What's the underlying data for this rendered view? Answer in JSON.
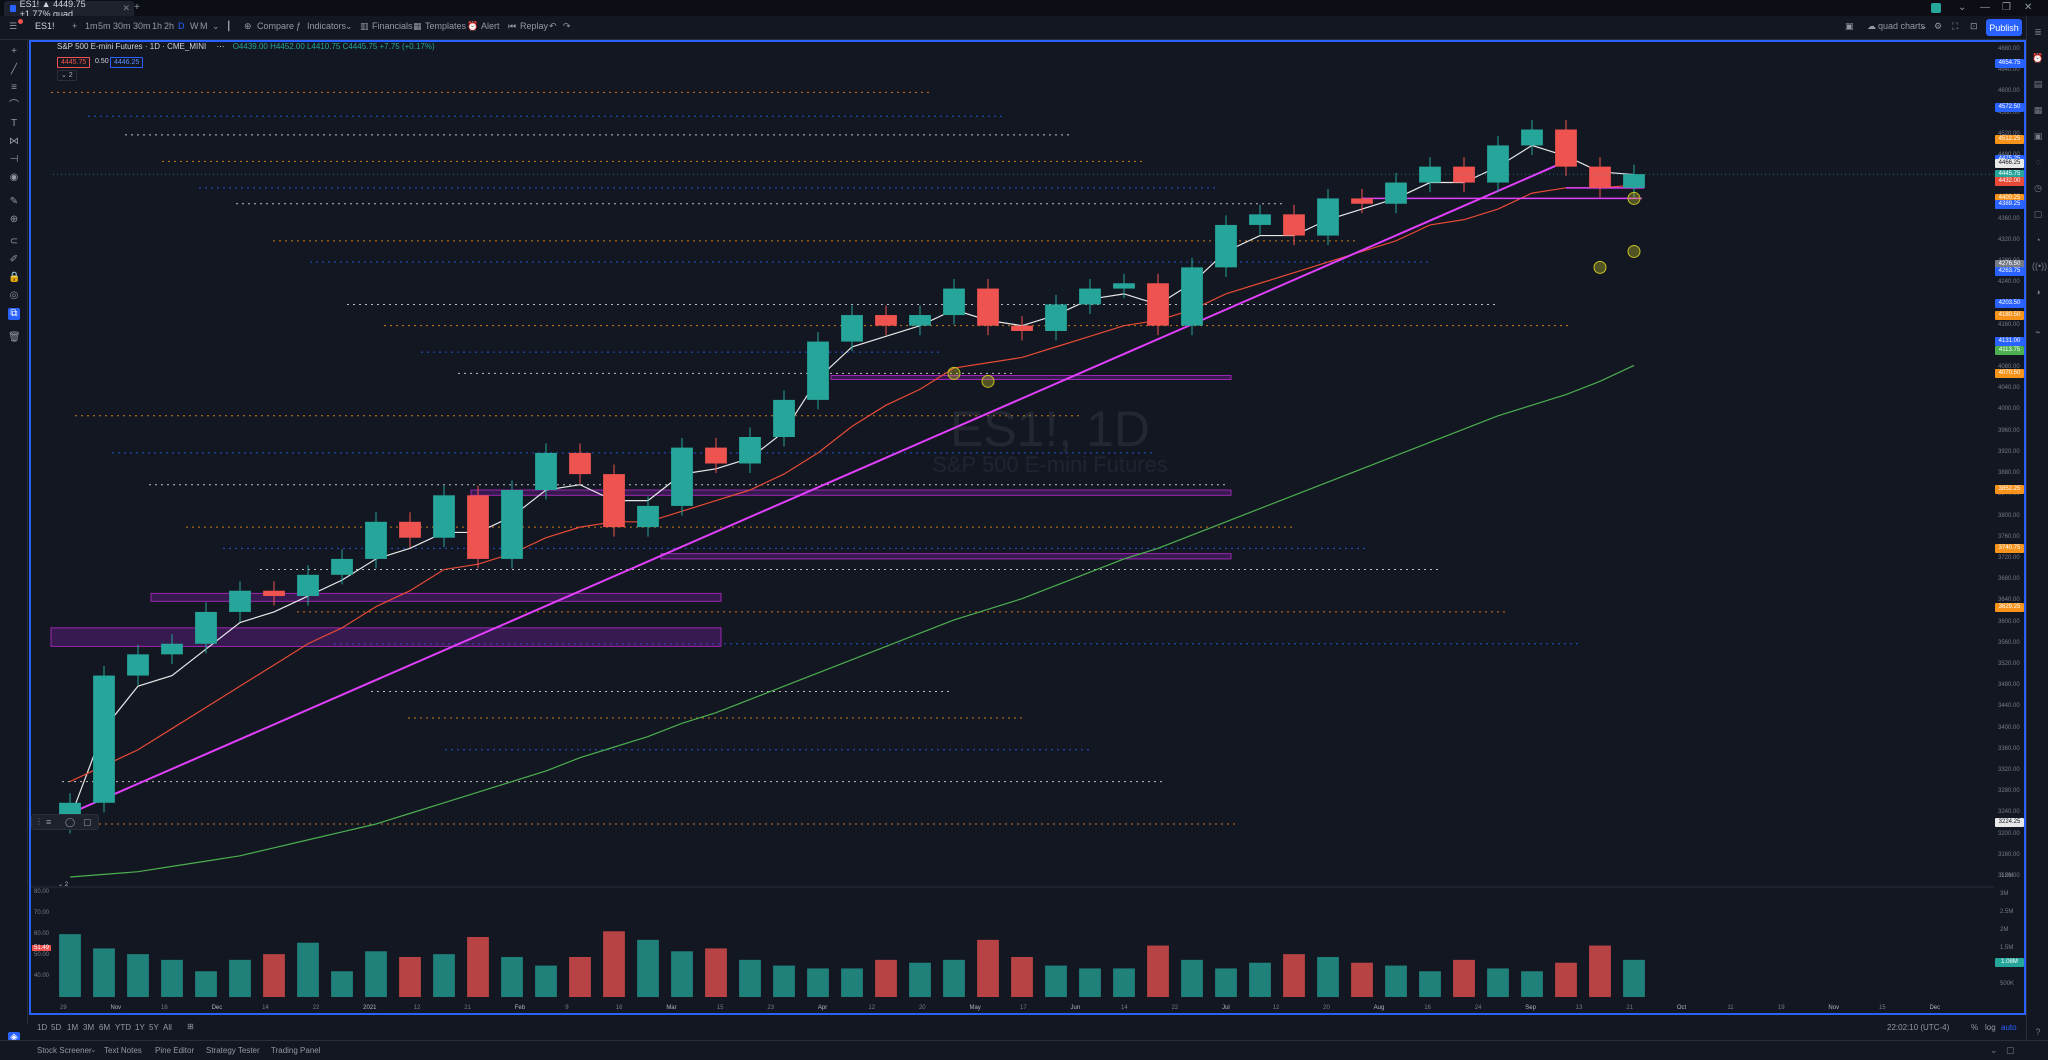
{
  "titlebar": {
    "tab_label": "ES1! ▲ 4449.75 +1.77% quad",
    "new_tab": "+",
    "window_buttons": [
      "⌄",
      "—",
      "❐",
      "✕"
    ]
  },
  "toolbar": {
    "symbol": "ES1!",
    "intervals": [
      "1m",
      "5m",
      "30m",
      "30m",
      "1h",
      "2h",
      "D",
      "W",
      "M"
    ],
    "compare": "Compare",
    "indicators": "Indicators",
    "financials": "Financials",
    "templates": "Templates",
    "alert": "Alert",
    "replay": "Replay",
    "layout_name": "quad charts",
    "publish": "Publish"
  },
  "legend": {
    "title": "S&P 500 E-mini Futures · 1D · CME_MINI",
    "ohlc": "O4439.00 H4452.00 L4410.75 C4445.75 +7.75 (+0.17%)",
    "sell_price": "4445.75",
    "spread": "0.50",
    "buy_price": "4446.25",
    "indicator_toggle": "⌄ 2"
  },
  "watermark": {
    "symbol": "ES1!, 1D",
    "name": "S&P 500 E-mini Futures"
  },
  "colors": {
    "background": "#131722",
    "up": "#26a69a",
    "down": "#ef5350",
    "ema_white": "#e8e8e8",
    "ema_red": "#e64a36",
    "sma_green": "#4caf50",
    "trendline": "#e040fb",
    "zone_fill": "#7b1fa2",
    "accent": "#2962ff"
  },
  "price_axis": {
    "ticks": [
      "4680.00",
      "4640.00",
      "4600.00",
      "4560.00",
      "4520.00",
      "4480.00",
      "4440.00",
      "4400.00",
      "4360.00",
      "4320.00",
      "4280.00",
      "4240.00",
      "4200.00",
      "4160.00",
      "4120.00",
      "4080.00",
      "4040.00",
      "4000.00",
      "3960.00",
      "3920.00",
      "3880.00",
      "3840.00",
      "3800.00",
      "3760.00",
      "3720.00",
      "3680.00",
      "3640.00",
      "3600.00",
      "3560.00",
      "3520.00",
      "3480.00",
      "3440.00",
      "3400.00",
      "3360.00",
      "3320.00",
      "3280.00",
      "3240.00",
      "3200.00",
      "3160.00",
      "3120.00"
    ],
    "tags": [
      {
        "text": "4654.75",
        "color": "#2962ff"
      },
      {
        "text": "4572.50",
        "color": "#2962ff"
      },
      {
        "text": "4512.25",
        "color": "#f7931a"
      },
      {
        "text": "4475.25",
        "color": "#2962ff"
      },
      {
        "text": "4466.25",
        "color": "#e8e8e8"
      },
      {
        "text": "4445.75",
        "color": "#26a69a"
      },
      {
        "text": "4432.00",
        "color": "#e64a36"
      },
      {
        "text": "4400.25",
        "color": "#f7931a"
      },
      {
        "text": "4389.25",
        "color": "#2962ff"
      },
      {
        "text": "4276.50",
        "color": "#787b86"
      },
      {
        "text": "4263.75",
        "color": "#2962ff"
      },
      {
        "text": "4203.50",
        "color": "#2962ff"
      },
      {
        "text": "4180.50",
        "color": "#f7931a"
      },
      {
        "text": "4131.00",
        "color": "#2962ff"
      },
      {
        "text": "4113.75",
        "color": "#4caf50"
      },
      {
        "text": "4070.50",
        "color": "#f7931a"
      },
      {
        "text": "3852.25",
        "color": "#f7931a"
      },
      {
        "text": "3740.75",
        "color": "#f7931a"
      },
      {
        "text": "3629.25",
        "color": "#f7931a"
      },
      {
        "text": "3224.25",
        "color": "#e8e8e8"
      }
    ]
  },
  "volume_axis": {
    "ticks": [
      "3.5M",
      "3M",
      "2.5M",
      "2M",
      "1.5M",
      "1M",
      "500K"
    ],
    "tag": "1.08M",
    "left_ticks": [
      "80.00",
      "70.00",
      "60.00",
      "50.00",
      "40.00"
    ],
    "left_tag": "51.49",
    "toggle": "⌄ 2"
  },
  "time_axis": [
    "29",
    "Nov",
    "16",
    "Dec",
    "14",
    "22",
    "2021",
    "12",
    "21",
    "Feb",
    "9",
    "16",
    "Mar",
    "15",
    "23",
    "Apr",
    "12",
    "20",
    "May",
    "17",
    "Jun",
    "14",
    "22",
    "Jul",
    "12",
    "20",
    "Aug",
    "16",
    "24",
    "Sep",
    "13",
    "21",
    "Oct",
    "11",
    "19",
    "Nov",
    "15",
    "Dec"
  ],
  "bottom_bar": {
    "ranges": [
      "1D",
      "5D",
      "1M",
      "3M",
      "6M",
      "YTD",
      "1Y",
      "5Y",
      "All"
    ],
    "clock": "22:02:10 (UTC-4)",
    "pct": "%",
    "log": "log",
    "auto": "auto"
  },
  "bottom_panel": {
    "tabs": [
      "Stock Screener",
      "Text Notes",
      "Pine Editor",
      "Strategy Tester",
      "Trading Panel"
    ]
  },
  "chart_data": {
    "type": "candlestick",
    "symbol": "ES1!",
    "interval": "1D",
    "ylim": [
      3120,
      4680
    ],
    "last_close": 4445.75,
    "x": [
      "2020-10-29",
      "2020-11-05",
      "2020-11-12",
      "2020-11-19",
      "2020-11-27",
      "2020-12-04",
      "2020-12-11",
      "2020-12-18",
      "2020-12-28",
      "2021-01-06",
      "2021-01-13",
      "2021-01-21",
      "2021-01-28",
      "2021-02-04",
      "2021-02-11",
      "2021-02-19",
      "2021-02-26",
      "2021-03-05",
      "2021-03-12",
      "2021-03-19",
      "2021-03-26",
      "2021-04-01",
      "2021-04-09",
      "2021-04-16",
      "2021-04-23",
      "2021-04-30",
      "2021-05-07",
      "2021-05-14",
      "2021-05-21",
      "2021-05-28",
      "2021-06-04",
      "2021-06-11",
      "2021-06-18",
      "2021-06-25",
      "2021-07-02",
      "2021-07-09",
      "2021-07-16",
      "2021-07-23",
      "2021-07-30",
      "2021-08-06",
      "2021-08-13",
      "2021-08-20",
      "2021-08-27",
      "2021-09-03",
      "2021-09-10",
      "2021-09-17",
      "2021-09-24"
    ],
    "close": [
      3260,
      3500,
      3540,
      3560,
      3620,
      3660,
      3650,
      3690,
      3720,
      3790,
      3760,
      3840,
      3720,
      3850,
      3920,
      3880,
      3780,
      3820,
      3930,
      3900,
      3950,
      4020,
      4130,
      4180,
      4160,
      4180,
      4230,
      4160,
      4150,
      4200,
      4230,
      4240,
      4160,
      4270,
      4350,
      4370,
      4330,
      4400,
      4390,
      4430,
      4460,
      4430,
      4500,
      4530,
      4460,
      4420,
      4445.75
    ],
    "volume_k": [
      2200,
      1700,
      1500,
      1300,
      900,
      1300,
      1500,
      1900,
      900,
      1600,
      1400,
      1500,
      2100,
      1400,
      1100,
      1400,
      2300,
      2000,
      1600,
      1700,
      1300,
      1100,
      1000,
      1000,
      1300,
      1200,
      1300,
      2000,
      1400,
      1100,
      1000,
      1000,
      1800,
      1300,
      1000,
      1200,
      1500,
      1400,
      1200,
      1100,
      900,
      1300,
      1000,
      900,
      1200,
      1800,
      1300
    ],
    "series": [
      {
        "values": [
          3230,
          3400,
          3480,
          3500,
          3550,
          3600,
          3620,
          3650,
          3680,
          3720,
          3740,
          3770,
          3770,
          3800,
          3850,
          3860,
          3830,
          3830,
          3880,
          3890,
          3910,
          3960,
          4060,
          4120,
          4140,
          4160,
          4190,
          4170,
          4160,
          4180,
          4210,
          4220,
          4200,
          4240,
          4300,
          4330,
          4330,
          4360,
          4380,
          4400,
          4430,
          4430,
          4460,
          4500,
          4480,
          4450,
          4445
        ]
      },
      {
        "values": [
          3300,
          3330,
          3360,
          3400,
          3440,
          3480,
          3520,
          3560,
          3590,
          3630,
          3660,
          3700,
          3710,
          3730,
          3760,
          3780,
          3790,
          3790,
          3810,
          3830,
          3850,
          3880,
          3920,
          3970,
          4010,
          4040,
          4080,
          4090,
          4100,
          4120,
          4140,
          4160,
          4170,
          4190,
          4220,
          4240,
          4260,
          4280,
          4300,
          4320,
          4350,
          4360,
          4380,
          4410,
          4420,
          4420,
          4425
        ]
      },
      {
        "values": [
          3120,
          3125,
          3130,
          3140,
          3150,
          3160,
          3175,
          3190,
          3205,
          3220,
          3240,
          3260,
          3280,
          3300,
          3320,
          3345,
          3365,
          3385,
          3410,
          3430,
          3455,
          3480,
          3505,
          3530,
          3555,
          3580,
          3605,
          3625,
          3645,
          3670,
          3695,
          3720,
          3740,
          3765,
          3790,
          3815,
          3840,
          3865,
          3890,
          3915,
          3940,
          3965,
          3990,
          4010,
          4030,
          4055,
          4085
        ]
      }
    ]
  }
}
